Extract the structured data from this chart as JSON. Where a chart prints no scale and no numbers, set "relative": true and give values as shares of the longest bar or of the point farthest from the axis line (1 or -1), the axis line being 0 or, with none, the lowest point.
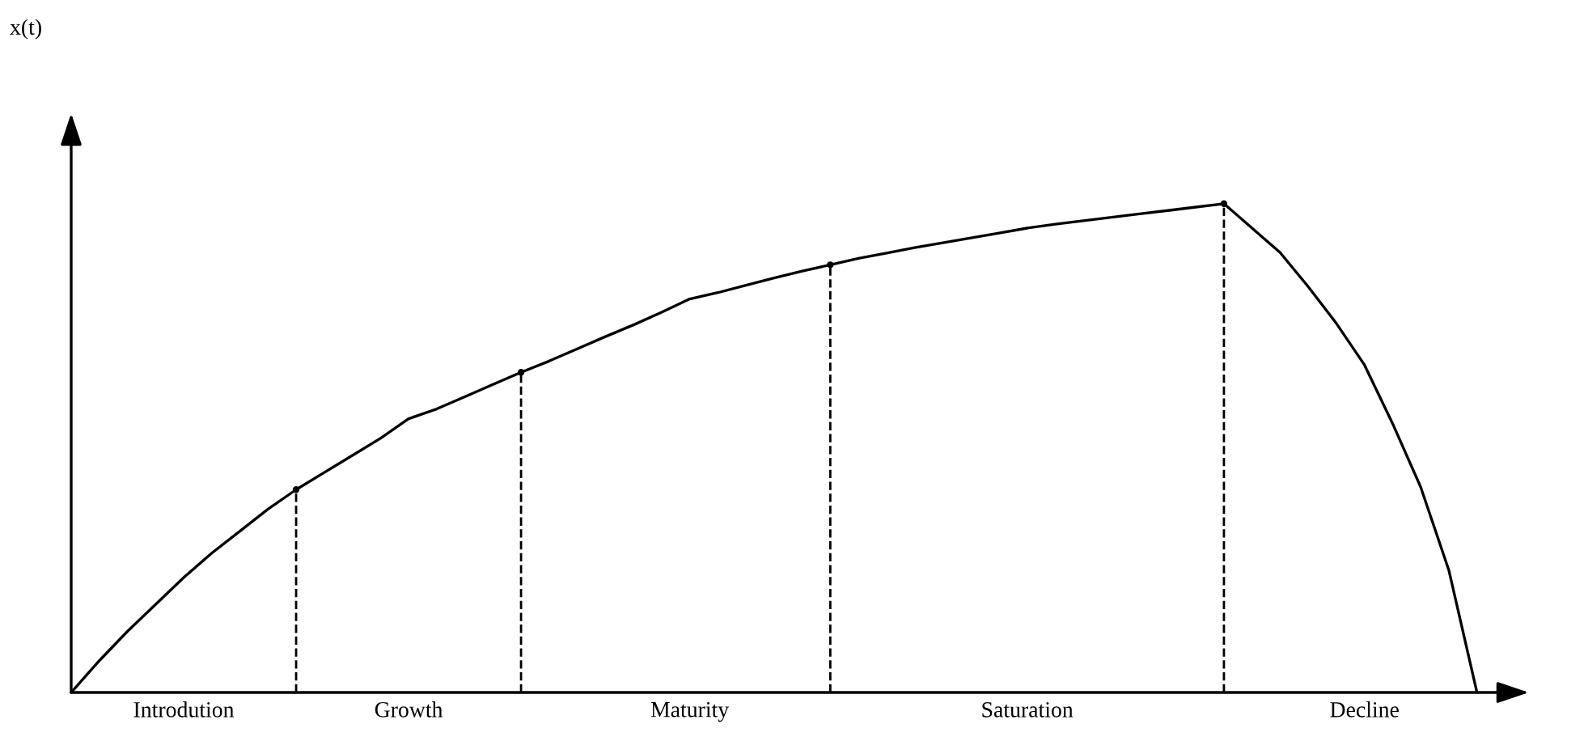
{
  "chart_data": {
    "type": "line",
    "relative": true,
    "annotations": [
      "x(t)"
    ],
    "categories": [
      null,
      null,
      null,
      null,
      "Introdution",
      null,
      null,
      null,
      null,
      null,
      null,
      null,
      "Growth",
      null,
      null,
      null,
      null,
      null,
      null,
      null,
      null,
      null,
      "Maturity",
      null,
      null,
      null,
      null,
      null,
      null,
      null,
      null,
      null,
      null,
      null,
      "Saturation",
      null,
      null,
      null,
      null,
      null,
      null,
      null,
      null,
      null,
      null,
      null,
      "Decline",
      null,
      null,
      null,
      null
    ],
    "series": [
      {
        "color": "#000000",
        "line_style": "solid",
        "values": [
          0,
          0.065,
          0.125,
          0.18,
          0.235,
          0.285,
          0.33,
          0.375,
          0.415,
          0.45,
          0.485,
          0.52,
          0.56,
          0.58,
          0.605,
          0.63,
          0.655,
          0.678,
          0.703,
          0.728,
          0.752,
          0.778,
          0.805,
          0.818,
          0.833,
          0.848,
          0.862,
          0.875,
          0.888,
          0.899,
          0.91,
          0.92,
          0.93,
          0.94,
          0.95,
          0.958,
          0.965,
          0.972,
          0.979,
          0.986,
          0.993,
          1.0,
          0.95,
          0.9,
          0.83,
          0.755,
          0.67,
          0.55,
          0.42,
          0.25,
          0
        ]
      },
      {
        "type": "lollipop",
        "color": "#000000",
        "line_style": "dashed",
        "values": [
          null,
          null,
          null,
          null,
          null,
          null,
          null,
          null,
          0.415,
          null,
          null,
          null,
          null,
          null,
          null,
          null,
          0.655,
          null,
          null,
          null,
          null,
          null,
          null,
          null,
          null,
          null,
          null,
          0.875,
          null,
          null,
          null,
          null,
          null,
          null,
          null,
          null,
          null,
          null,
          null,
          null,
          null,
          1.0,
          null,
          null,
          null,
          null,
          null,
          null,
          null,
          null,
          null
        ]
      }
    ]
  }
}
